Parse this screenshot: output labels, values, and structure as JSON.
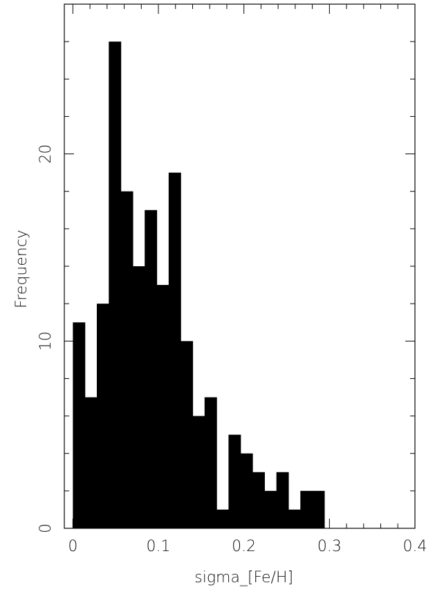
{
  "chart_data": {
    "type": "bar",
    "subtype": "histogram",
    "title": "",
    "xlabel": "sigma_[Fe/H]",
    "ylabel": "Frequency",
    "xlim": [
      -0.01,
      0.4
    ],
    "ylim": [
      0,
      28
    ],
    "bin_width": 0.014,
    "bin_start": 0.0,
    "values": [
      11,
      7,
      12,
      26,
      18,
      14,
      17,
      13,
      19,
      10,
      6,
      7,
      1,
      5,
      4,
      3,
      2,
      3,
      1,
      2,
      2
    ],
    "x_ticks": [
      {
        "value": 0.0,
        "label": "0"
      },
      {
        "value": 0.1,
        "label": "0.1"
      },
      {
        "value": 0.2,
        "label": "0.2"
      },
      {
        "value": 0.3,
        "label": "0.3"
      },
      {
        "value": 0.4,
        "label": "0.4"
      }
    ],
    "y_ticks": [
      {
        "value": 0,
        "label": "0"
      },
      {
        "value": 10,
        "label": "10"
      },
      {
        "value": 20,
        "label": "20"
      }
    ],
    "x_minor_step": 0.02,
    "y_minor_step": 2,
    "grid": false,
    "legend": "none",
    "colors": {
      "bar": "#000000",
      "axes": "#000000",
      "background": "#ffffff"
    }
  }
}
